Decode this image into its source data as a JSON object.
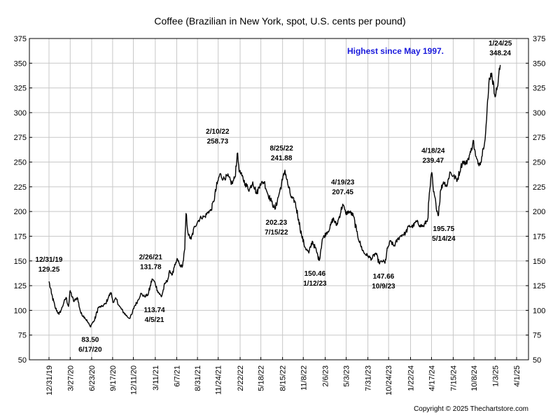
{
  "chart_data": {
    "type": "line",
    "title": "Coffee (Brazilian in New York, spot, U.S. cents per pound)",
    "xlabel": "",
    "ylabel": "",
    "ylim": [
      50,
      375
    ],
    "yticks": [
      50,
      75,
      100,
      125,
      150,
      175,
      200,
      225,
      250,
      275,
      300,
      325,
      350,
      375
    ],
    "xticks": [
      "12/31/19",
      "3/27/20",
      "6/23/20",
      "9/17/20",
      "12/11/20",
      "3/11/21",
      "6/7/21",
      "8/31/21",
      "11/24/21",
      "2/22/22",
      "5/18/22",
      "8/15/22",
      "11/8/22",
      "2/6/23",
      "5/3/23",
      "7/31/23",
      "10/24/23",
      "1/22/24",
      "4/17/24",
      "7/15/24",
      "10/8/24",
      "1/3/25",
      "4/1/25"
    ],
    "grid": true,
    "line_color": "#000000",
    "series": [
      {
        "x": [
          "2019-12-31",
          "2020-01-10",
          "2020-01-25",
          "2020-02-10",
          "2020-02-20",
          "2020-03-01",
          "2020-03-10",
          "2020-03-20",
          "2020-03-27",
          "2020-04-10",
          "2020-04-25",
          "2020-05-10",
          "2020-05-25",
          "2020-06-05",
          "2020-06-17",
          "2020-06-25",
          "2020-07-05",
          "2020-07-20",
          "2020-08-05",
          "2020-08-20",
          "2020-09-01",
          "2020-09-10",
          "2020-09-20",
          "2020-10-01",
          "2020-10-15",
          "2020-11-01",
          "2020-11-15",
          "2020-11-25",
          "2020-12-05",
          "2020-12-15",
          "2020-12-28",
          "2021-01-10",
          "2021-01-25",
          "2021-02-10",
          "2021-02-26",
          "2021-03-10",
          "2021-03-20",
          "2021-04-05",
          "2021-04-20",
          "2021-05-01",
          "2021-05-10",
          "2021-05-20",
          "2021-06-01",
          "2021-06-10",
          "2021-06-20",
          "2021-07-01",
          "2021-07-10",
          "2021-07-15",
          "2021-07-25",
          "2021-08-05",
          "2021-08-20",
          "2021-09-01",
          "2021-09-15",
          "2021-10-01",
          "2021-10-15",
          "2021-10-25",
          "2021-11-05",
          "2021-11-20",
          "2021-12-01",
          "2021-12-15",
          "2022-01-01",
          "2022-01-20",
          "2022-02-01",
          "2022-02-10",
          "2022-02-20",
          "2022-03-01",
          "2022-03-15",
          "2022-04-01",
          "2022-04-15",
          "2022-05-01",
          "2022-05-15",
          "2022-06-01",
          "2022-06-15",
          "2022-07-01",
          "2022-07-15",
          "2022-08-01",
          "2022-08-15",
          "2022-08-25",
          "2022-09-05",
          "2022-09-20",
          "2022-10-05",
          "2022-10-20",
          "2022-11-01",
          "2022-11-15",
          "2022-12-01",
          "2022-12-15",
          "2023-01-01",
          "2023-01-12",
          "2023-01-25",
          "2023-02-10",
          "2023-02-25",
          "2023-03-10",
          "2023-03-25",
          "2023-04-05",
          "2023-04-19",
          "2023-05-01",
          "2023-05-15",
          "2023-06-01",
          "2023-06-15",
          "2023-07-01",
          "2023-07-15",
          "2023-08-01",
          "2023-08-15",
          "2023-09-01",
          "2023-09-15",
          "2023-10-01",
          "2023-10-09",
          "2023-10-20",
          "2023-11-01",
          "2023-11-15",
          "2023-12-01",
          "2023-12-15",
          "2024-01-01",
          "2024-01-15",
          "2024-02-01",
          "2024-02-15",
          "2024-03-01",
          "2024-03-15",
          "2024-04-01",
          "2024-04-10",
          "2024-04-18",
          "2024-04-25",
          "2024-05-05",
          "2024-05-14",
          "2024-05-25",
          "2024-06-05",
          "2024-06-20",
          "2024-07-01",
          "2024-07-15",
          "2024-08-01",
          "2024-08-15",
          "2024-08-25",
          "2024-09-05",
          "2024-09-15",
          "2024-09-25",
          "2024-10-05",
          "2024-10-15",
          "2024-10-25",
          "2024-11-05",
          "2024-11-15",
          "2024-11-25",
          "2024-12-05",
          "2024-12-10",
          "2024-12-20",
          "2025-01-01",
          "2025-01-10",
          "2025-01-24"
        ],
        "values": [
          129.25,
          117,
          103,
          96,
          101,
          108,
          113,
          104,
          120,
          109,
          113,
          97,
          93,
          89,
          83.5,
          87,
          90,
          103,
          104,
          107,
          114,
          118,
          108,
          112,
          104,
          98,
          94,
          92,
          96,
          104,
          109,
          117,
          114,
          116,
          131.78,
          128,
          120,
          113.74,
          127,
          131,
          140,
          136,
          146,
          152,
          145,
          145,
          162,
          198,
          176,
          172,
          185,
          190,
          194,
          195,
          200,
          201,
          210,
          228,
          238,
          233,
          236,
          228,
          235,
          258.73,
          240,
          236,
          228,
          222,
          230,
          218,
          228,
          230,
          218,
          210,
          202.23,
          218,
          232,
          241.88,
          228,
          214,
          210,
          192,
          176,
          164,
          158,
          170,
          160,
          150.46,
          172,
          178,
          183,
          193,
          186,
          195,
          207.45,
          198,
          200,
          196,
          180,
          166,
          158,
          155,
          152,
          158,
          148,
          150,
          147.66,
          163,
          170,
          165,
          172,
          176,
          178,
          185,
          185,
          190,
          186,
          185,
          192,
          222,
          239.47,
          220,
          208,
          195.75,
          222,
          230,
          226,
          240,
          236,
          232,
          245,
          251,
          248,
          254,
          260,
          272,
          256,
          248,
          250,
          264,
          280,
          315,
          335,
          340,
          318,
          323,
          348.24
        ]
      }
    ],
    "annotations": [
      {
        "date": "12/31/19",
        "value": "129.25"
      },
      {
        "date": "6/17/20",
        "value": "83.50"
      },
      {
        "date": "2/26/21",
        "value": "131.78"
      },
      {
        "date": "4/5/21",
        "value": "113.74"
      },
      {
        "date": "2/10/22",
        "value": "258.73"
      },
      {
        "date": "8/25/22",
        "value": "241.88"
      },
      {
        "date": "7/15/22",
        "value": "202.23"
      },
      {
        "date": "1/12/23",
        "value": "150.46"
      },
      {
        "date": "4/19/23",
        "value": "207.45"
      },
      {
        "date": "10/9/23",
        "value": "147.66"
      },
      {
        "date": "4/18/24",
        "value": "239.47"
      },
      {
        "date": "5/14/24",
        "value": "195.75"
      },
      {
        "date": "1/24/25",
        "value": "348.24"
      }
    ],
    "highlight": "Highest since May 1997.",
    "highlight_color": "#1a1adc",
    "copyright": "Copyright © 2025 Thechartstore.com"
  }
}
